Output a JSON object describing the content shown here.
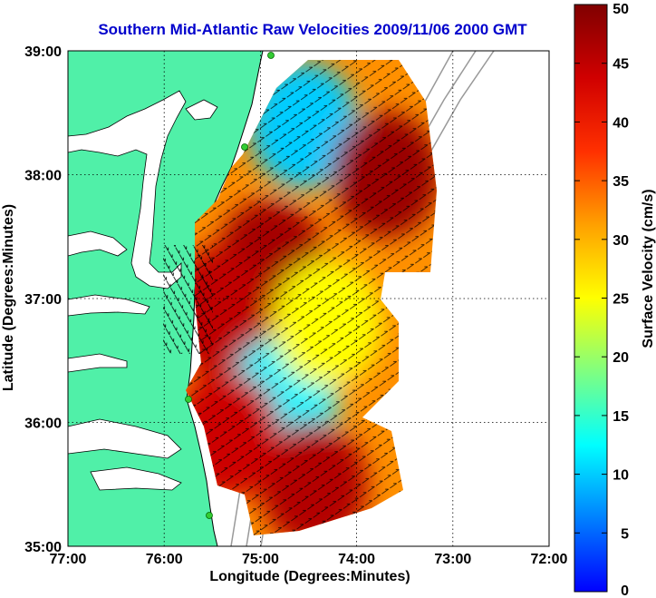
{
  "chart_data": {
    "type": "heatmap",
    "title": "Southern Mid-Atlantic Raw Velocities 2009/11/06 2000 GMT",
    "xlabel": "Longitude (Degrees:Minutes)",
    "ylabel": "Latitude (Degrees:Minutes)",
    "x_ticks": [
      "77:00",
      "76:00",
      "75:00",
      "74:00",
      "73:00",
      "72:00"
    ],
    "x_tick_values": [
      -77,
      -76,
      -75,
      -74,
      -73,
      -72
    ],
    "y_ticks": [
      "39:00",
      "38:00",
      "37:00",
      "36:00",
      "35:00"
    ],
    "y_tick_values": [
      39,
      38,
      37,
      36,
      35
    ],
    "xlim": [
      -77,
      -72
    ],
    "ylim": [
      35,
      39
    ],
    "grid": true,
    "colorbar": {
      "label": "Surface Velocity (cm/s)",
      "min": 0,
      "max": 50,
      "ticks": [
        "50",
        "45",
        "40",
        "35",
        "30",
        "25",
        "20",
        "15",
        "10",
        "5",
        "0"
      ],
      "tick_values": [
        50,
        45,
        40,
        35,
        30,
        25,
        20,
        15,
        10,
        5,
        0
      ],
      "colormap": "jet"
    },
    "velocity_regions": [
      {
        "lon": -74.9,
        "lat": 37.3,
        "speed": 47
      },
      {
        "lon": -74.55,
        "lat": 38.4,
        "speed": 10
      },
      {
        "lon": -73.7,
        "lat": 38.0,
        "speed": 48
      },
      {
        "lon": -75.45,
        "lat": 36.9,
        "speed": 45
      },
      {
        "lon": -74.75,
        "lat": 36.2,
        "speed": 12
      },
      {
        "lon": -74.45,
        "lat": 35.5,
        "speed": 46
      },
      {
        "lon": -75.35,
        "lat": 35.9,
        "speed": 44
      },
      {
        "lon": -74.3,
        "lat": 36.8,
        "speed": 25
      }
    ]
  },
  "colors": {
    "title": "#0000cc",
    "land": "#50f0a8",
    "coast": "#000000",
    "bathymetry": "#999999",
    "station": "#33cc33"
  }
}
